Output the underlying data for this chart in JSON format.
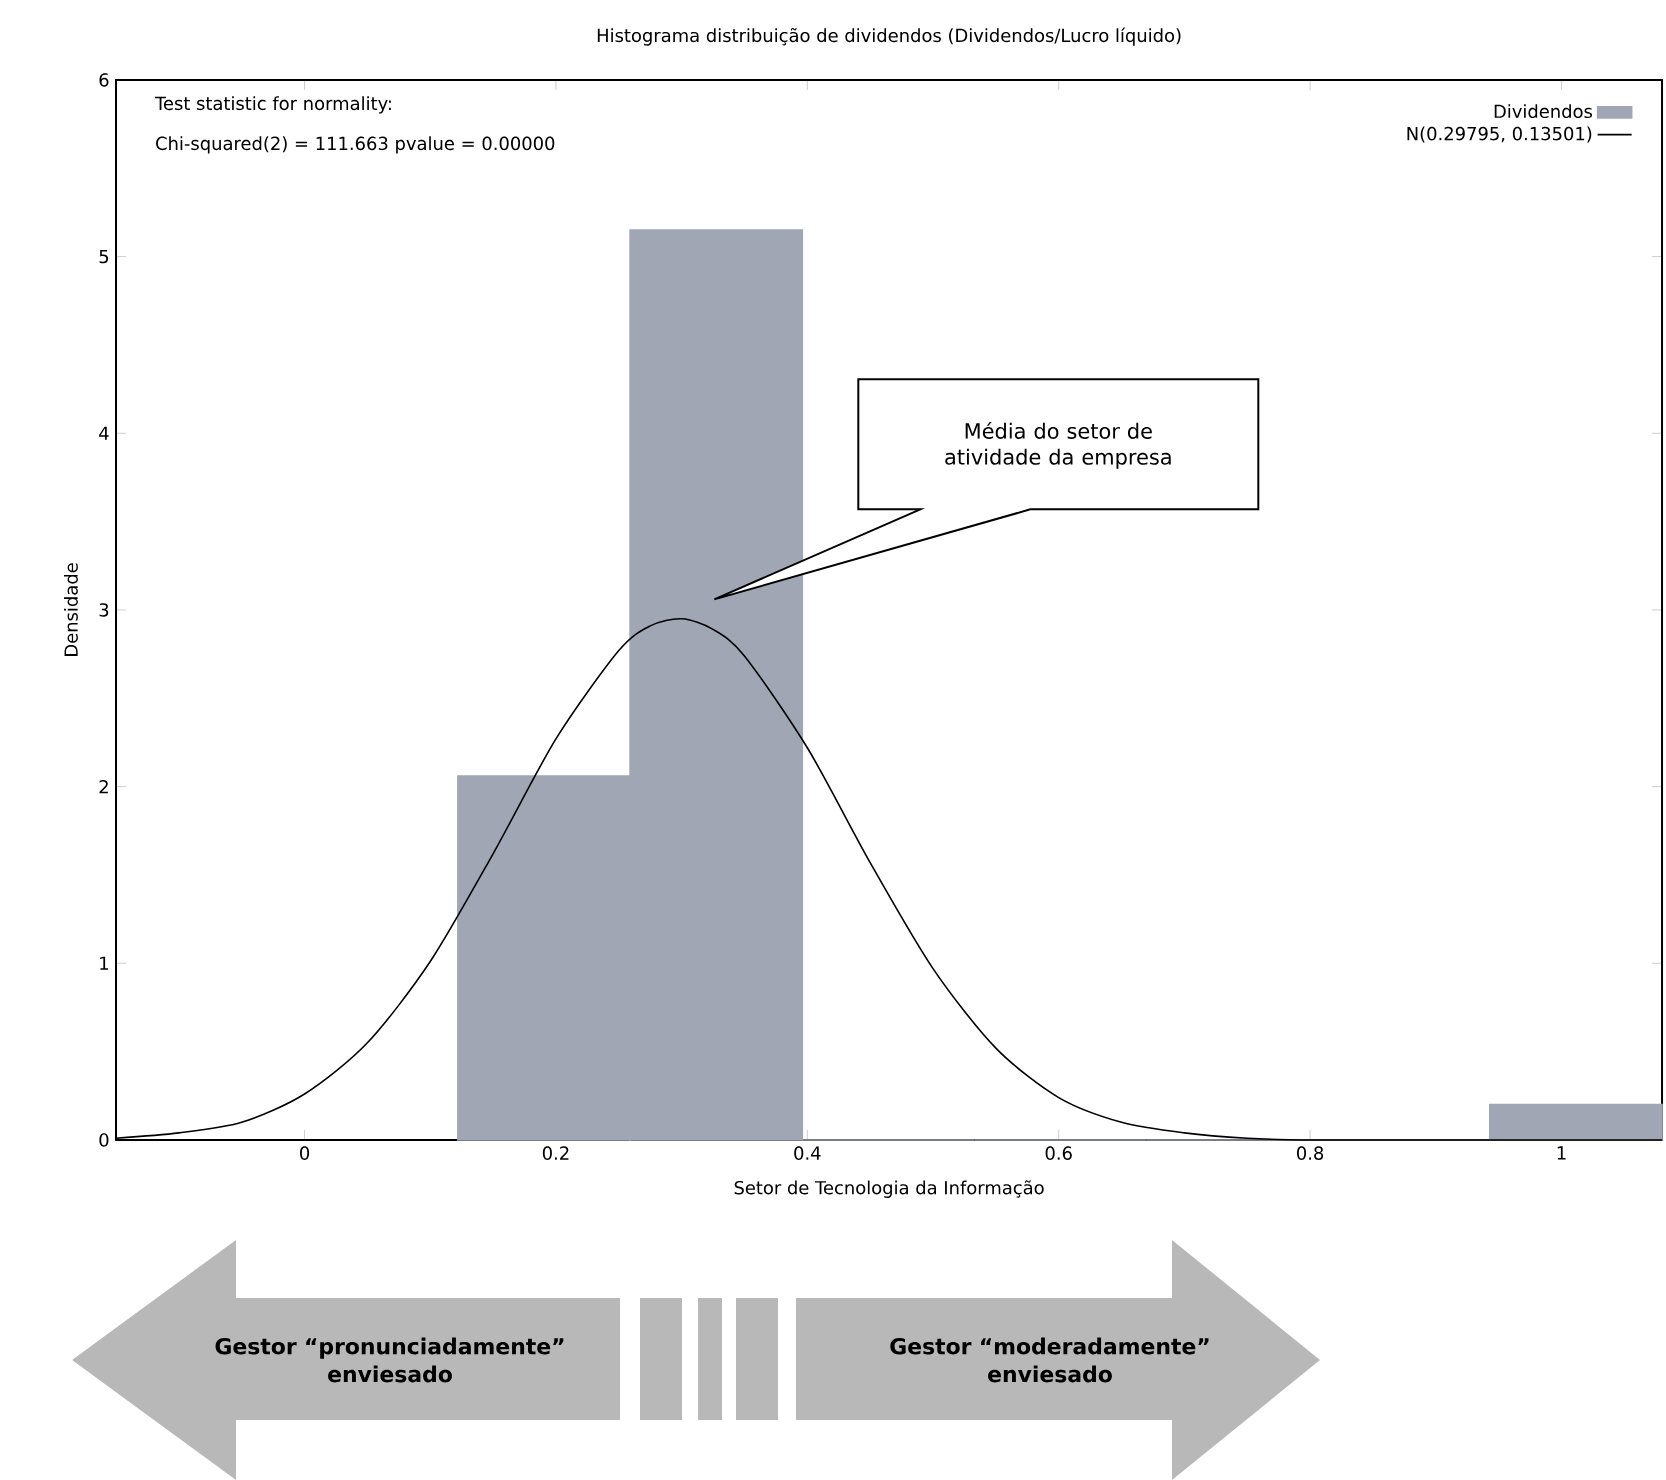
{
  "chart_data": {
    "type": "histogram",
    "title": "Histograma distribuição de dividendos (Dividendos/Lucro líquido)",
    "xlabel": "Setor de Tecnologia da Informação",
    "ylabel": "Densidade",
    "series": [
      {
        "name": "Dividendos",
        "color": "#a0a6b4",
        "bins": [
          0.122,
          0.259,
          0.396,
          0.533,
          0.67,
          0.806,
          0.943,
          1.08
        ],
        "values": [
          2.06,
          5.15,
          0,
          0,
          0,
          0,
          0.2
        ]
      },
      {
        "name": "N(0.29795, 0.13501)",
        "type": "line",
        "color": "#000000",
        "x": [
          -0.15,
          -0.1,
          -0.05,
          0,
          0.05,
          0.1,
          0.15,
          0.2,
          0.25,
          0.275,
          0.3,
          0.325,
          0.35,
          0.4,
          0.45,
          0.5,
          0.55,
          0.6,
          0.65,
          0.7,
          0.75,
          0.8,
          0.9,
          1.0,
          1.08
        ],
        "values": [
          0.01,
          0.04,
          0.1,
          0.26,
          0.55,
          1.01,
          1.62,
          2.27,
          2.77,
          2.91,
          2.95,
          2.89,
          2.74,
          2.22,
          1.57,
          0.97,
          0.52,
          0.24,
          0.1,
          0.04,
          0.01,
          0,
          0,
          0,
          0
        ]
      }
    ],
    "xlim": [
      -0.15,
      1.08
    ],
    "ylim": [
      0,
      6
    ],
    "xticks": [
      0,
      0.2,
      0.4,
      0.6,
      0.8,
      1
    ],
    "yticks": [
      0,
      1,
      2,
      3,
      4,
      5,
      6
    ],
    "grid": false,
    "legend": "top right",
    "marker": "none",
    "line_style": "solid",
    "annotations": [
      "Test statistic for normality:",
      "Chi-squared(2) = 111.663 pvalue = 0.00000",
      "Média do setor de atividade da empresa",
      "Gestor “pronunciadamente” enviesado",
      "Gestor “moderadamente” enviesado"
    ]
  }
}
